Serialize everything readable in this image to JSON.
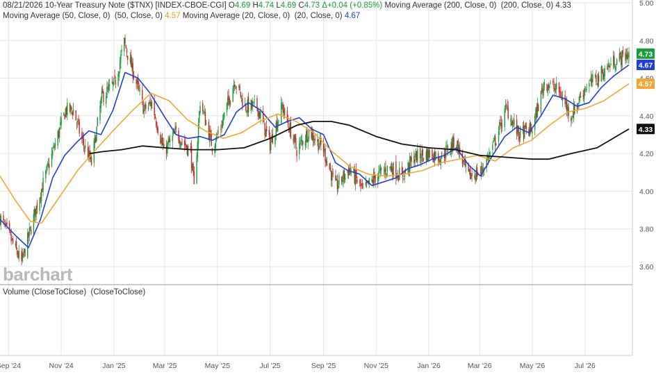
{
  "legend": {
    "date": "08/21/2026",
    "instrument": "10-Year Treasury Note ($TNX) [INDEX-CBOE-CGI]",
    "open_label": "O",
    "open": "4.69",
    "high_label": "H",
    "high": "4.74",
    "low_label": "L",
    "low": "4.69",
    "close_label": "C",
    "close": "4.73",
    "change": "Δ+0.04 (+0.85%)",
    "ma200_label": "Moving Average (200, Close, 0)  (200, Close, 0)",
    "ma200_value": "4.33",
    "ma50_label": "Moving Average (50, Close, 0)  (50, Close, 0)",
    "ma50_value": "4.57",
    "ma20_label": "Moving Average (20, Close, 0)  (20, Close, 0)",
    "ma20_value": "4.67"
  },
  "volume_label": "Volume (CloseToClose)  (CloseToClose)",
  "watermark": "barchart",
  "colors": {
    "up": "#1a9c3a",
    "down": "#c62828",
    "ma20": "#1f3fd6",
    "ma50": "#f2a633",
    "ma200": "#111111",
    "grid": "#e6e6e6"
  },
  "price_badges": [
    {
      "label": "4.73",
      "color": "#1a9c3a"
    },
    {
      "label": "4.67",
      "color": "#1f3fd6"
    },
    {
      "label": "4.57",
      "color": "#f2a633"
    },
    {
      "label": "4.33",
      "color": "#111111"
    }
  ],
  "chart_data": {
    "type": "candlestick",
    "title": "10-Year Treasury Note ($TNX)",
    "ylim": [
      3.5,
      5.0
    ],
    "y_ticks": [
      "3.60",
      "3.80",
      "4.00",
      "4.20",
      "4.40",
      "4.60",
      "4.80",
      "5.00"
    ],
    "x_ticks": [
      "Sep '24",
      "Nov '24",
      "Jan '25",
      "Mar '25",
      "May '25",
      "Jul '25",
      "Sep '25",
      "Nov '25",
      "Jan '26",
      "Mar '26",
      "May '26",
      "Jul '26"
    ],
    "grid": true,
    "price_series": {
      "name": "$TNX",
      "points": [
        [
          "2024-08-22",
          3.86
        ],
        [
          "2024-09-05",
          3.73
        ],
        [
          "2024-09-16",
          3.62
        ],
        [
          "2024-09-26",
          3.79
        ],
        [
          "2024-10-07",
          3.98
        ],
        [
          "2024-10-21",
          4.19
        ],
        [
          "2024-11-06",
          4.43
        ],
        [
          "2024-11-15",
          4.43
        ],
        [
          "2024-11-25",
          4.27
        ],
        [
          "2024-12-06",
          4.15
        ],
        [
          "2024-12-18",
          4.5
        ],
        [
          "2025-01-02",
          4.57
        ],
        [
          "2025-01-13",
          4.79
        ],
        [
          "2025-01-24",
          4.62
        ],
        [
          "2025-02-05",
          4.43
        ],
        [
          "2025-02-14",
          4.47
        ],
        [
          "2025-02-28",
          4.21
        ],
        [
          "2025-03-14",
          4.31
        ],
        [
          "2025-03-31",
          4.21
        ],
        [
          "2025-04-04",
          4.01
        ],
        [
          "2025-04-11",
          4.48
        ],
        [
          "2025-04-25",
          4.24
        ],
        [
          "2025-05-05",
          4.34
        ],
        [
          "2025-05-21",
          4.59
        ],
        [
          "2025-06-02",
          4.45
        ],
        [
          "2025-06-16",
          4.45
        ],
        [
          "2025-07-01",
          4.25
        ],
        [
          "2025-07-15",
          4.45
        ],
        [
          "2025-08-01",
          4.22
        ],
        [
          "2025-08-15",
          4.32
        ],
        [
          "2025-09-01",
          4.22
        ],
        [
          "2025-09-15",
          4.02
        ],
        [
          "2025-10-01",
          4.12
        ],
        [
          "2025-10-17",
          4.0
        ],
        [
          "2025-11-01",
          4.08
        ],
        [
          "2025-11-17",
          4.13
        ],
        [
          "2025-12-01",
          4.08
        ],
        [
          "2025-12-15",
          4.18
        ],
        [
          "2026-01-02",
          4.2
        ],
        [
          "2026-01-15",
          4.18
        ],
        [
          "2026-02-01",
          4.27
        ],
        [
          "2026-02-15",
          4.08
        ],
        [
          "2026-03-02",
          4.1
        ],
        [
          "2026-03-16",
          4.23
        ],
        [
          "2026-04-01",
          4.44
        ],
        [
          "2026-04-15",
          4.3
        ],
        [
          "2026-05-01",
          4.33
        ],
        [
          "2026-05-15",
          4.58
        ],
        [
          "2026-06-01",
          4.53
        ],
        [
          "2026-06-15",
          4.4
        ],
        [
          "2026-07-01",
          4.55
        ],
        [
          "2026-07-15",
          4.6
        ],
        [
          "2026-08-01",
          4.68
        ],
        [
          "2026-08-21",
          4.73
        ]
      ]
    },
    "series": [
      {
        "name": "Moving Average (20, Close, 0)",
        "color": "#1f3fd6",
        "points": [
          [
            "2024-08-22",
            3.85
          ],
          [
            "2024-09-10",
            3.76
          ],
          [
            "2024-09-24",
            3.7
          ],
          [
            "2024-10-08",
            3.85
          ],
          [
            "2024-10-22",
            4.07
          ],
          [
            "2024-11-05",
            4.19
          ],
          [
            "2024-11-19",
            4.26
          ],
          [
            "2024-12-03",
            4.32
          ],
          [
            "2024-12-17",
            4.3
          ],
          [
            "2024-12-31",
            4.43
          ],
          [
            "2025-01-14",
            4.63
          ],
          [
            "2025-01-29",
            4.6
          ],
          [
            "2025-02-12",
            4.52
          ],
          [
            "2025-02-28",
            4.4
          ],
          [
            "2025-03-14",
            4.3
          ],
          [
            "2025-03-28",
            4.28
          ],
          [
            "2025-04-11",
            4.29
          ],
          [
            "2025-04-25",
            4.27
          ],
          [
            "2025-05-09",
            4.3
          ],
          [
            "2025-05-23",
            4.42
          ],
          [
            "2025-06-06",
            4.47
          ],
          [
            "2025-06-20",
            4.43
          ],
          [
            "2025-07-07",
            4.34
          ],
          [
            "2025-07-21",
            4.37
          ],
          [
            "2025-08-04",
            4.39
          ],
          [
            "2025-08-18",
            4.33
          ],
          [
            "2025-09-01",
            4.3
          ],
          [
            "2025-09-15",
            4.15
          ],
          [
            "2025-09-29",
            4.11
          ],
          [
            "2025-10-13",
            4.09
          ],
          [
            "2025-10-27",
            4.03
          ],
          [
            "2025-11-10",
            4.05
          ],
          [
            "2025-11-24",
            4.07
          ],
          [
            "2025-12-08",
            4.12
          ],
          [
            "2025-12-22",
            4.14
          ],
          [
            "2026-01-05",
            4.17
          ],
          [
            "2026-01-19",
            4.19
          ],
          [
            "2026-02-02",
            4.23
          ],
          [
            "2026-02-16",
            4.14
          ],
          [
            "2026-03-02",
            4.08
          ],
          [
            "2026-03-16",
            4.19
          ],
          [
            "2026-03-30",
            4.29
          ],
          [
            "2026-04-13",
            4.34
          ],
          [
            "2026-04-27",
            4.31
          ],
          [
            "2026-05-11",
            4.4
          ],
          [
            "2026-05-25",
            4.51
          ],
          [
            "2026-06-08",
            4.49
          ],
          [
            "2026-06-22",
            4.45
          ],
          [
            "2026-07-06",
            4.47
          ],
          [
            "2026-07-20",
            4.55
          ],
          [
            "2026-08-03",
            4.61
          ],
          [
            "2026-08-21",
            4.67
          ]
        ]
      },
      {
        "name": "Moving Average (50, Close, 0)",
        "color": "#f2a633",
        "points": [
          [
            "2024-08-22",
            4.08
          ],
          [
            "2024-09-09",
            3.95
          ],
          [
            "2024-09-26",
            3.84
          ],
          [
            "2024-10-09",
            3.83
          ],
          [
            "2024-10-30",
            3.97
          ],
          [
            "2024-11-20",
            4.11
          ],
          [
            "2024-12-11",
            4.22
          ],
          [
            "2025-01-02",
            4.33
          ],
          [
            "2025-01-23",
            4.43
          ],
          [
            "2025-02-13",
            4.52
          ],
          [
            "2025-03-06",
            4.48
          ],
          [
            "2025-03-27",
            4.38
          ],
          [
            "2025-04-17",
            4.32
          ],
          [
            "2025-05-08",
            4.28
          ],
          [
            "2025-05-29",
            4.31
          ],
          [
            "2025-06-19",
            4.37
          ],
          [
            "2025-07-10",
            4.41
          ],
          [
            "2025-07-31",
            4.37
          ],
          [
            "2025-08-21",
            4.31
          ],
          [
            "2025-09-11",
            4.21
          ],
          [
            "2025-10-02",
            4.13
          ],
          [
            "2025-10-23",
            4.09
          ],
          [
            "2025-11-13",
            4.08
          ],
          [
            "2025-12-04",
            4.09
          ],
          [
            "2025-12-25",
            4.11
          ],
          [
            "2026-01-15",
            4.15
          ],
          [
            "2026-02-05",
            4.17
          ],
          [
            "2026-02-26",
            4.19
          ],
          [
            "2026-03-19",
            4.16
          ],
          [
            "2026-04-09",
            4.23
          ],
          [
            "2026-04-30",
            4.27
          ],
          [
            "2026-05-21",
            4.35
          ],
          [
            "2026-06-11",
            4.42
          ],
          [
            "2026-07-02",
            4.44
          ],
          [
            "2026-07-23",
            4.48
          ],
          [
            "2026-08-21",
            4.57
          ]
        ]
      },
      {
        "name": "Moving Average (200, Close, 0)",
        "color": "#111111",
        "points": [
          [
            "2024-12-04",
            4.2
          ],
          [
            "2024-12-19",
            4.21
          ],
          [
            "2025-01-10",
            4.22
          ],
          [
            "2025-02-03",
            4.24
          ],
          [
            "2025-03-01",
            4.23
          ],
          [
            "2025-04-01",
            4.22
          ],
          [
            "2025-05-01",
            4.22
          ],
          [
            "2025-06-01",
            4.23
          ],
          [
            "2025-07-01",
            4.28
          ],
          [
            "2025-08-01",
            4.35
          ],
          [
            "2025-08-20",
            4.37
          ],
          [
            "2025-09-10",
            4.37
          ],
          [
            "2025-10-01",
            4.35
          ],
          [
            "2025-11-01",
            4.29
          ],
          [
            "2025-12-01",
            4.25
          ],
          [
            "2026-01-01",
            4.23
          ],
          [
            "2026-02-01",
            4.22
          ],
          [
            "2026-03-01",
            4.19
          ],
          [
            "2026-04-01",
            4.18
          ],
          [
            "2026-05-01",
            4.17
          ],
          [
            "2026-05-20",
            4.17
          ],
          [
            "2026-06-15",
            4.2
          ],
          [
            "2026-07-15",
            4.23
          ],
          [
            "2026-08-21",
            4.33
          ]
        ]
      }
    ]
  }
}
